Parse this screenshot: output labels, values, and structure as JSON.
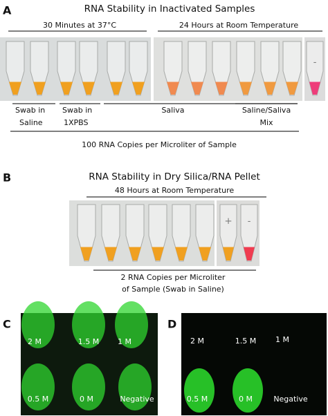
{
  "panel_a": {
    "label": "A",
    "title": "RNA Stability in Inactivated Samples",
    "conditions": [
      "30 Minutes at 37°C",
      "24 Hours at Room Temperature"
    ],
    "control_label": "-",
    "groups": [
      [
        "Swab in",
        "Saline"
      ],
      [
        "Swab in",
        "1XPBS"
      ],
      [
        "Saliva"
      ],
      [
        "Saline/Saliva",
        "Mix"
      ]
    ],
    "footer": "100 RNA Copies per Microliter of Sample"
  },
  "panel_b": {
    "label": "B",
    "title": "RNA Stability in Dry Silica/RNA Pellet",
    "condition": "48 Hours at Room Temperature",
    "controls": [
      "+",
      "-"
    ],
    "footer": [
      "2 RNA Copies per Microliter",
      "of Sample (Swab in Saline)"
    ]
  },
  "panel_c": {
    "label": "C",
    "tubes": [
      "2 M",
      "1.5 M",
      "1 M",
      "0.5 M",
      "0 M",
      "Negative"
    ]
  },
  "panel_d": {
    "label": "D",
    "tubes": [
      "2 M",
      "1.5 M",
      "1 M",
      "0.5 M",
      "0 M",
      "Negative"
    ]
  }
}
